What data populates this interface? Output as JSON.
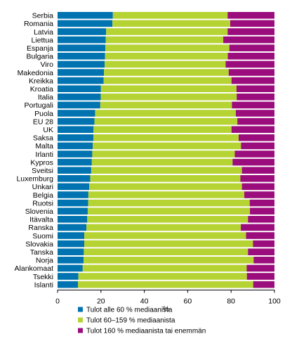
{
  "chart_data": {
    "type": "bar",
    "orientation": "horizontal",
    "stacked": "percent",
    "categories": [
      "Serbia",
      "Romania",
      "Latvia",
      "Liettua",
      "Espanja",
      "Bulgaria",
      "Viro",
      "Makedonia",
      "Kreikka",
      "Kroatia",
      "Italia",
      "Portugali",
      "Puola",
      "EU 28",
      "UK",
      "Saksa",
      "Malta",
      "Irlanti",
      "Kypros",
      "Sveitsi",
      "Luxemburg",
      "Unkari",
      "Belgia",
      "Ruotsi",
      "Slovenia",
      "Itävalta",
      "Ranska",
      "Suomi",
      "Slovakia",
      "Tanska",
      "Norja",
      "Alankomaat",
      "Tsekki",
      "Islanti"
    ],
    "series": [
      {
        "name": "Tulot alle 60 % mediaanista",
        "color": "#0073b0",
        "values": [
          25.5,
          25.3,
          22.4,
          22.2,
          22.0,
          21.9,
          21.7,
          21.4,
          21.2,
          20.0,
          19.9,
          19.7,
          17.3,
          17.0,
          16.6,
          16.5,
          16.2,
          16.0,
          15.8,
          15.5,
          15.1,
          14.6,
          14.2,
          14.1,
          13.9,
          13.7,
          13.3,
          12.3,
          12.3,
          12.1,
          12.0,
          11.6,
          9.6,
          9.4
        ]
      },
      {
        "name": "Tulot 60–159 % mediaanista",
        "color": "#b6d334",
        "values": [
          52.9,
          54.3,
          56.0,
          54.2,
          57.2,
          56.6,
          55.8,
          57.5,
          59.0,
          62.5,
          62.7,
          60.7,
          64.9,
          65.9,
          63.6,
          67.0,
          68.4,
          65.7,
          64.9,
          69.5,
          69.2,
          70.4,
          71.9,
          74.5,
          74.8,
          74.1,
          71.2,
          74.6,
          77.8,
          75.7,
          78.4,
          75.6,
          77.7,
          80.8
        ]
      },
      {
        "name": "Tulot 160 % mediaanista tai enemmän",
        "color": "#9b0d7c",
        "values": [
          21.6,
          20.4,
          21.6,
          23.6,
          20.8,
          21.5,
          22.5,
          21.1,
          19.8,
          17.5,
          17.4,
          19.6,
          17.8,
          17.1,
          19.8,
          16.5,
          15.4,
          18.3,
          19.3,
          15.0,
          15.7,
          15.0,
          13.9,
          11.4,
          11.3,
          12.2,
          15.5,
          13.1,
          9.9,
          12.2,
          9.6,
          12.8,
          12.7,
          9.8
        ]
      }
    ],
    "xlim": [
      0,
      100
    ],
    "xticks": [
      "0",
      "20",
      "40",
      "60",
      "80",
      "100"
    ],
    "xlabel": "%",
    "legend_position": "bottom"
  }
}
